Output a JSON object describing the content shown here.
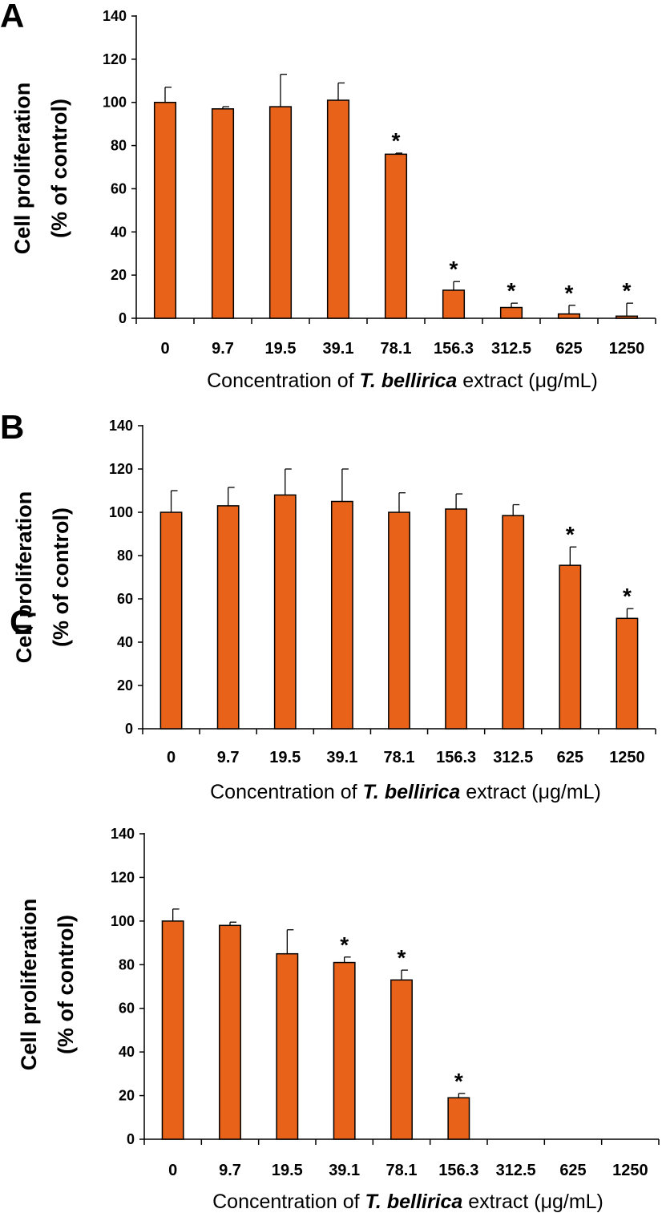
{
  "figure": {
    "panels": [
      "A",
      "B",
      "C"
    ]
  },
  "chart_data": [
    {
      "type": "bar",
      "panel": "A",
      "title": "",
      "ylabel": "Cell proliferation (% of control)",
      "ylabel_lines": [
        "Cell proliferation",
        "(% of control)"
      ],
      "xlabel": "Concentration of T. bellirica extract (μg/mL)",
      "xlabel_parts": [
        "Concentration of ",
        "T. bellirica",
        " extract (μg/mL)"
      ],
      "categories": [
        "0",
        "9.7",
        "19.5",
        "39.1",
        "78.1",
        "156.3",
        "312.5",
        "625",
        "1250"
      ],
      "values": [
        100,
        97,
        98,
        101,
        76,
        13,
        5,
        2,
        1
      ],
      "errors": [
        7,
        1,
        15,
        8,
        0.5,
        4,
        2,
        4,
        6
      ],
      "significant": [
        false,
        false,
        false,
        false,
        true,
        true,
        true,
        true,
        true
      ],
      "significance_marker": "*",
      "ylim": [
        0,
        140
      ],
      "yticks": [
        0,
        20,
        40,
        60,
        80,
        100,
        120,
        140
      ],
      "bar_color": "#E8621A"
    },
    {
      "type": "bar",
      "panel": "B",
      "title": "",
      "ylabel": "Cell proliferation (% of control)",
      "ylabel_lines": [
        "Cell proliferation",
        "(% of control)"
      ],
      "xlabel": "Concentration of T. bellirica extract (μg/mL)",
      "xlabel_parts": [
        "Concentration of ",
        "T. bellirica",
        " extract (μg/mL)"
      ],
      "categories": [
        "0",
        "9.7",
        "19.5",
        "39.1",
        "78.1",
        "156.3",
        "312.5",
        "625",
        "1250"
      ],
      "values": [
        100,
        103,
        108,
        105,
        100,
        101.5,
        98.5,
        75.5,
        51
      ],
      "errors": [
        10,
        8.5,
        12,
        15,
        9,
        7,
        5,
        8.5,
        4.5
      ],
      "significant": [
        false,
        false,
        false,
        false,
        false,
        false,
        false,
        true,
        true
      ],
      "significance_marker": "*",
      "ylim": [
        0,
        140
      ],
      "yticks": [
        0,
        20,
        40,
        60,
        80,
        100,
        120,
        140
      ],
      "bar_color": "#E8621A"
    },
    {
      "type": "bar",
      "panel": "C",
      "title": "",
      "ylabel": "Cell proliferation (% of control)",
      "ylabel_lines": [
        "Cell proliferation",
        "(% of control)"
      ],
      "xlabel": "Concentration of T. bellirica extract (μg/mL)",
      "xlabel_parts": [
        "Concentration of ",
        "T. bellirica",
        " extract (μg/mL)"
      ],
      "categories": [
        "0",
        "9.7",
        "19.5",
        "39.1",
        "78.1",
        "156.3",
        "312.5",
        "625",
        "1250"
      ],
      "values": [
        100,
        98,
        85,
        81,
        73,
        19,
        null,
        null,
        null
      ],
      "errors": [
        5.5,
        1.5,
        11,
        2.5,
        4.5,
        2,
        null,
        null,
        null
      ],
      "significant": [
        false,
        false,
        false,
        true,
        true,
        true,
        false,
        false,
        false
      ],
      "significance_marker": "*",
      "ylim": [
        0,
        140
      ],
      "yticks": [
        0,
        20,
        40,
        60,
        80,
        100,
        120,
        140
      ],
      "bar_color": "#E8621A"
    }
  ]
}
